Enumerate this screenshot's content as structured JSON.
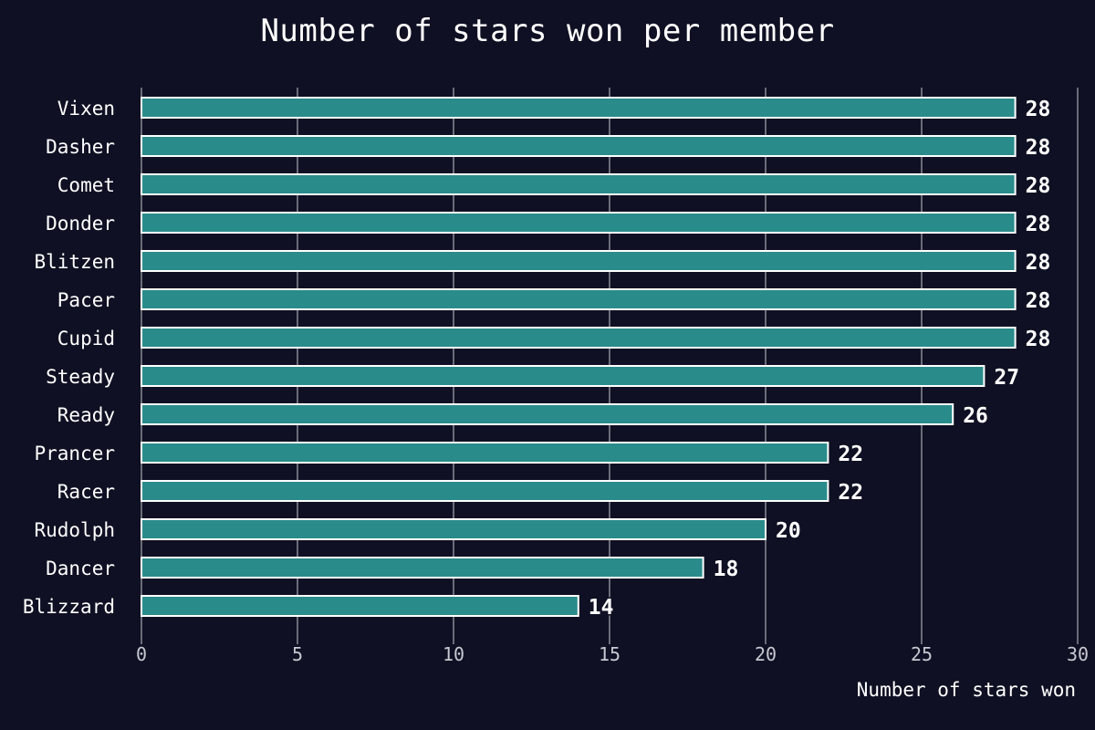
{
  "chart_data": {
    "type": "bar",
    "orientation": "horizontal",
    "title": "Number of stars won per member",
    "xlabel": "Number of stars won",
    "ylabel": "",
    "categories": [
      "Vixen",
      "Dasher",
      "Comet",
      "Donder",
      "Blitzen",
      "Pacer",
      "Cupid",
      "Steady",
      "Ready",
      "Prancer",
      "Racer",
      "Rudolph",
      "Dancer",
      "Blizzard"
    ],
    "values": [
      28,
      28,
      28,
      28,
      28,
      28,
      28,
      27,
      26,
      22,
      22,
      20,
      18,
      14
    ],
    "xlim": [
      0,
      30
    ],
    "xticks": [
      0,
      5,
      10,
      15,
      20,
      25,
      30
    ],
    "grid": "vertical",
    "legend": "none",
    "colors": {
      "background": "#0f1023",
      "bar_fill": "#2a8b8b",
      "bar_edge": "#ffffff",
      "grid": "#8a8a96",
      "text": "#ffffff",
      "tick_text": "#c8c8d2"
    }
  }
}
